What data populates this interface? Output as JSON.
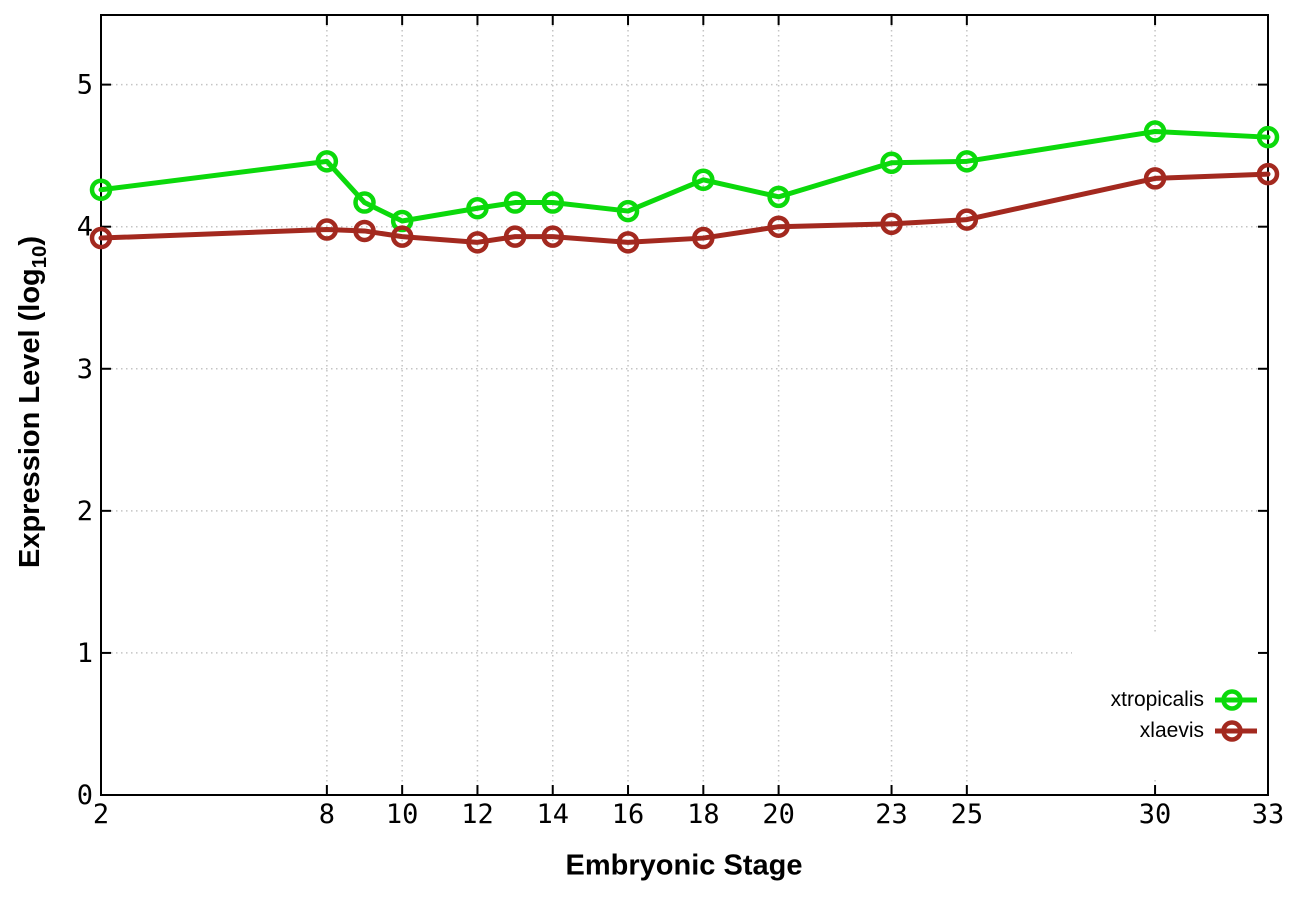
{
  "chart_data": {
    "type": "line",
    "title": "",
    "xlabel": "Embryonic Stage",
    "ylabel_prefix": "Expression Level (log",
    "ylabel_sub": "10",
    "ylabel_suffix": ")",
    "xlim": [
      2,
      33
    ],
    "ylim": [
      0,
      5.49
    ],
    "grid": true,
    "grid_color": "#c4c4c4",
    "axis_color": "#000000",
    "background": "#ffffff",
    "legend_position": "inside bottom-right, opaque white key box",
    "x_ticks": {
      "values": [
        2,
        8,
        10,
        12,
        14,
        16,
        18,
        20,
        23,
        25,
        30,
        33
      ],
      "labels": [
        "2",
        "8",
        "10",
        "12",
        "14",
        "16",
        "18",
        "20",
        "23",
        "25",
        "30",
        "33"
      ]
    },
    "y_ticks": {
      "values": [
        0,
        1,
        2,
        3,
        4,
        5
      ],
      "labels": [
        "0",
        "1",
        "2",
        "3",
        "4",
        "5"
      ]
    },
    "x": [
      2,
      8,
      9,
      10,
      12,
      13,
      14,
      16,
      18,
      20,
      23,
      25,
      30,
      33
    ],
    "series": [
      {
        "name": "xtropicalis",
        "color": "#0bd90b",
        "marker": "open-circle",
        "values": [
          4.26,
          4.46,
          4.17,
          4.04,
          4.13,
          4.17,
          4.17,
          4.11,
          4.33,
          4.21,
          4.45,
          4.46,
          4.67,
          4.63
        ]
      },
      {
        "name": "xlaevis",
        "color": "#a3291f",
        "marker": "open-circle",
        "values": [
          3.92,
          3.98,
          3.97,
          3.93,
          3.89,
          3.93,
          3.93,
          3.89,
          3.92,
          4.0,
          4.02,
          4.05,
          4.34,
          4.37
        ]
      }
    ]
  }
}
